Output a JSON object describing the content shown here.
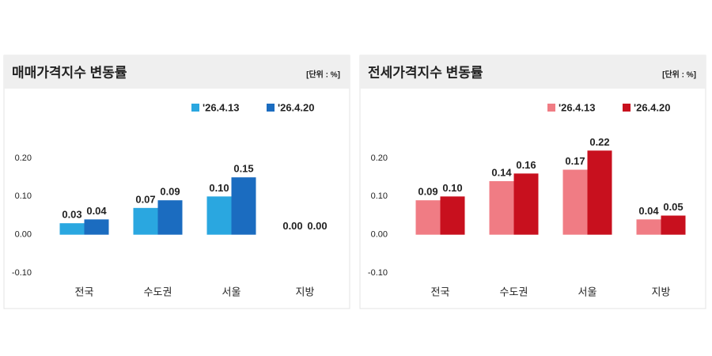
{
  "chart_data": [
    {
      "type": "bar",
      "title": "매매가격지수 변동률",
      "subtitle": "[단위 : %]",
      "categories": [
        "전국",
        "수도권",
        "서울",
        "지방"
      ],
      "series": [
        {
          "name": "'26.4.13",
          "color": "#2aa7e0",
          "values": [
            0.03,
            0.07,
            0.1,
            0.0
          ],
          "value_labels": [
            "0.03",
            "0.07",
            "0.10",
            "0.00"
          ]
        },
        {
          "name": "'26.4.20",
          "color": "#1b6cc0",
          "values": [
            0.04,
            0.09,
            0.15,
            0.0
          ],
          "value_labels": [
            "0.04",
            "0.09",
            "0.15",
            "0.00"
          ]
        }
      ],
      "ylim": [
        -0.1,
        0.2
      ],
      "yticks": [
        {
          "value": -0.1,
          "label": "-0.10"
        },
        {
          "value": 0,
          "label": "0.00"
        },
        {
          "value": 0.1,
          "label": "0.10"
        },
        {
          "value": 0.2,
          "label": "0.20"
        }
      ],
      "grid": false,
      "legend": "top-right"
    },
    {
      "type": "bar",
      "title": "전세가격지수 변동률",
      "subtitle": "[단위 : %]",
      "categories": [
        "전국",
        "수도권",
        "서울",
        "지방"
      ],
      "series": [
        {
          "name": "'26.4.13",
          "color": "#f07c84",
          "values": [
            0.09,
            0.14,
            0.17,
            0.04
          ],
          "value_labels": [
            "0.09",
            "0.14",
            "0.17",
            "0.04"
          ]
        },
        {
          "name": "'26.4.20",
          "color": "#c8101e",
          "values": [
            0.1,
            0.16,
            0.22,
            0.05
          ],
          "value_labels": [
            "0.10",
            "0.16",
            "0.22",
            "0.05"
          ]
        }
      ],
      "ylim": [
        -0.1,
        0.2
      ],
      "yticks": [
        {
          "value": -0.1,
          "label": "-0.10"
        },
        {
          "value": 0,
          "label": "0.00"
        },
        {
          "value": 0.1,
          "label": "0.10"
        },
        {
          "value": 0.2,
          "label": "0.20"
        }
      ],
      "grid": false,
      "legend": "top-right"
    }
  ]
}
